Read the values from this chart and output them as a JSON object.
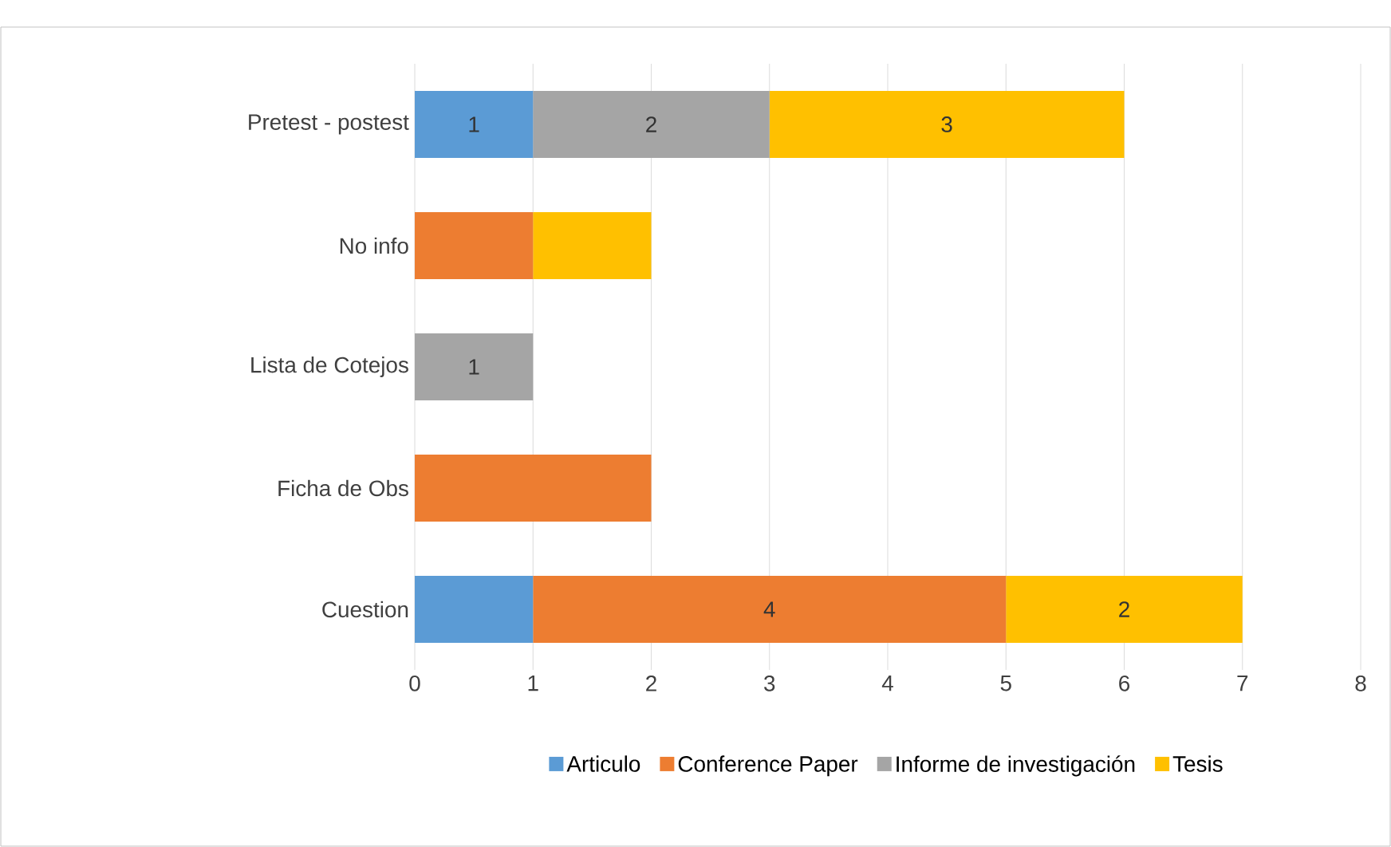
{
  "chart_data": {
    "type": "bar",
    "orientation": "horizontal",
    "stacked": true,
    "categories": [
      "Pretest - postest",
      "No info",
      "Lista de Cotejos",
      "Ficha de Obs",
      "Cuestion"
    ],
    "series": [
      {
        "name": "Articulo",
        "color": "#5b9bd5",
        "values": [
          1,
          null,
          null,
          null,
          1
        ],
        "value_labels": [
          "1",
          null,
          null,
          null,
          null
        ]
      },
      {
        "name": "Conference Paper",
        "color": "#ed7d31",
        "values": [
          null,
          1,
          null,
          2,
          4
        ],
        "value_labels": [
          null,
          null,
          null,
          null,
          "4"
        ]
      },
      {
        "name": "Informe de investigación",
        "color": "#a5a5a5",
        "values": [
          2,
          null,
          1,
          null,
          null
        ],
        "value_labels": [
          "2",
          null,
          "1",
          null,
          null
        ]
      },
      {
        "name": "Tesis",
        "color": "#ffc000",
        "values": [
          3,
          1,
          null,
          null,
          2
        ],
        "value_labels": [
          "3",
          null,
          null,
          null,
          "2"
        ]
      }
    ],
    "xlim": [
      0,
      8
    ],
    "xticks": [
      0,
      1,
      2,
      3,
      4,
      5,
      6,
      7,
      8
    ],
    "grid": "x",
    "legend": "bottom"
  }
}
